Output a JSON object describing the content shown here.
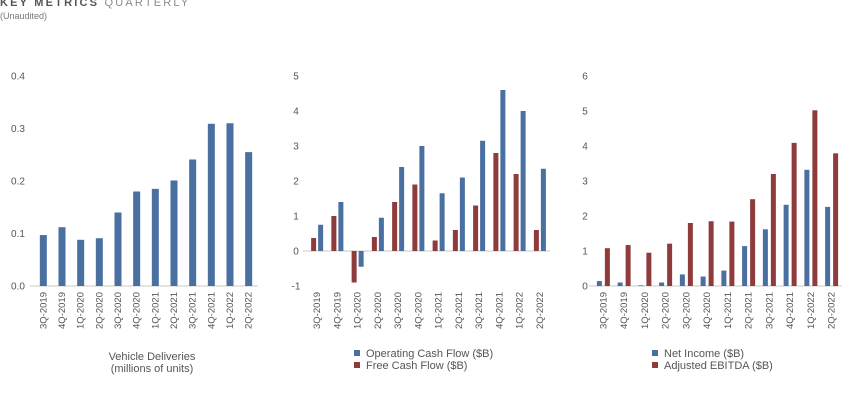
{
  "header": {
    "title_bold": "KEY METRICS",
    "title_light": "QUARTERLY",
    "subtitle": "(Unaudited)"
  },
  "colors": {
    "blue": "#4a6fa1",
    "red": "#8f3b3b",
    "axis": "#c8c8c8"
  },
  "chart_data": [
    {
      "type": "bar",
      "categories": [
        "3Q-2019",
        "4Q-2019",
        "1Q-2020",
        "2Q-2020",
        "3Q-2020",
        "4Q-2020",
        "1Q-2021",
        "2Q-2021",
        "3Q-2021",
        "4Q-2021",
        "1Q-2022",
        "2Q-2022"
      ],
      "series": [
        {
          "values": [
            0.097,
            0.112,
            0.088,
            0.091,
            0.14,
            0.18,
            0.185,
            0.201,
            0.241,
            0.309,
            0.31,
            0.255
          ],
          "color": "#4a6fa1"
        }
      ],
      "ylim": [
        0,
        0.4
      ],
      "yticks": [
        0.0,
        0.1,
        0.2,
        0.3,
        0.4
      ],
      "ytick_labels": [
        "0.0",
        "0.1",
        "0.2",
        "0.3",
        "0.4"
      ],
      "xlabel": "Vehicle Deliveries\n(millions of units)",
      "grid": false
    },
    {
      "type": "bar",
      "categories": [
        "3Q-2019",
        "4Q-2019",
        "1Q-2020",
        "2Q-2020",
        "3Q-2020",
        "4Q-2020",
        "1Q-2021",
        "2Q-2021",
        "3Q-2021",
        "4Q-2021",
        "1Q-2022",
        "2Q-2022"
      ],
      "series": [
        {
          "name": "Free Cash Flow ($B)",
          "values": [
            0.37,
            1.0,
            -0.9,
            0.4,
            1.4,
            1.9,
            0.3,
            0.6,
            1.3,
            2.8,
            2.2,
            0.6
          ],
          "color": "#8f3b3b"
        },
        {
          "name": "Operating Cash Flow ($B)",
          "values": [
            0.75,
            1.4,
            -0.45,
            0.95,
            2.4,
            3.0,
            1.65,
            2.1,
            3.15,
            4.6,
            4.0,
            2.35
          ],
          "color": "#4a6fa1"
        }
      ],
      "ylim": [
        -1,
        5
      ],
      "yticks": [
        -1,
        0,
        1,
        2,
        3,
        4,
        5
      ],
      "ytick_labels": [
        "-1",
        "0",
        "1",
        "2",
        "3",
        "4",
        "5"
      ],
      "legend": [
        "Operating Cash Flow ($B)",
        "Free Cash Flow ($B)"
      ],
      "legend_placement": "bottom",
      "grid": false
    },
    {
      "type": "bar",
      "categories": [
        "3Q-2019",
        "4Q-2019",
        "1Q-2020",
        "2Q-2020",
        "3Q-2020",
        "4Q-2020",
        "1Q-2021",
        "2Q-2021",
        "3Q-2021",
        "4Q-2021",
        "1Q-2022",
        "2Q-2022"
      ],
      "series": [
        {
          "name": "Net Income ($B)",
          "values": [
            0.14,
            0.1,
            0.02,
            0.1,
            0.33,
            0.27,
            0.44,
            1.14,
            1.62,
            2.32,
            3.32,
            2.26
          ],
          "color": "#4a6fa1"
        },
        {
          "name": "Adjusted EBITDA ($B)",
          "values": [
            1.08,
            1.17,
            0.95,
            1.21,
            1.8,
            1.85,
            1.84,
            2.48,
            3.2,
            4.09,
            5.02,
            3.79
          ],
          "color": "#8f3b3b"
        }
      ],
      "ylim": [
        0,
        6
      ],
      "yticks": [
        0,
        1,
        2,
        3,
        4,
        5,
        6
      ],
      "ytick_labels": [
        "0",
        "1",
        "2",
        "3",
        "4",
        "5",
        "6"
      ],
      "legend": [
        "Net Income ($B)",
        "Adjusted EBITDA ($B)"
      ],
      "legend_placement": "bottom",
      "grid": false
    }
  ]
}
